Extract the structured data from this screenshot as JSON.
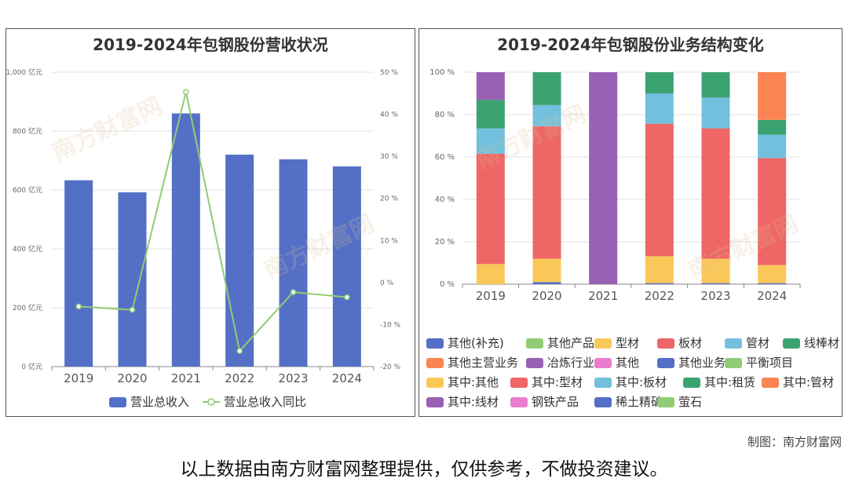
{
  "chart_data": [
    {
      "type": "bar",
      "title": "2019-2024年包钢股份营收状况",
      "categories": [
        "2019",
        "2020",
        "2021",
        "2022",
        "2023",
        "2024"
      ],
      "series": [
        {
          "name": "营业总收入",
          "type": "bar",
          "axis": "left",
          "values": [
            633,
            592,
            860,
            720,
            704,
            680
          ]
        },
        {
          "name": "营业总收入同比",
          "type": "line",
          "axis": "right",
          "values": [
            -5.7,
            -6.5,
            45.3,
            -16.3,
            -2.3,
            -3.5
          ]
        }
      ],
      "y_left": {
        "ylim": [
          0,
          1000
        ],
        "ticks": [
          "0 亿元",
          "200 亿元",
          "400 亿元",
          "600 亿元",
          "800 亿元",
          "1,000 亿元"
        ]
      },
      "y_right": {
        "ylim": [
          -20,
          50
        ],
        "ticks": [
          "-20 %",
          "-10 %",
          "0 %",
          "10 %",
          "20 %",
          "30 %",
          "40 %",
          "50 %"
        ]
      },
      "legend": [
        "营业总收入",
        "营业总收入同比"
      ],
      "colors": {
        "bar": "#5470c6",
        "line": "#91cc75"
      }
    },
    {
      "type": "bar",
      "stacked": true,
      "title": "2019-2024年包钢股份业务结构变化",
      "categories": [
        "2019",
        "2020",
        "2021",
        "2022",
        "2023",
        "2024"
      ],
      "ylim": [
        0,
        100
      ],
      "y_ticks": [
        "0 %",
        "20 %",
        "40 %",
        "60 %",
        "80 %",
        "100 %"
      ],
      "series": [
        {
          "name": "其他(补充)",
          "color": "#5470c6",
          "values": [
            0,
            1,
            0,
            0.5,
            0.5,
            0.5
          ]
        },
        {
          "name": "其他产品",
          "color": "#91cc75",
          "values": [
            0,
            0,
            0,
            0,
            0,
            0
          ]
        },
        {
          "name": "型材",
          "color": "#fac858",
          "values": [
            9.5,
            11,
            0,
            12.7,
            11.5,
            8.5
          ]
        },
        {
          "name": "板材",
          "color": "#ee6666",
          "values": [
            52,
            62.5,
            0,
            62.5,
            61.5,
            50.5
          ]
        },
        {
          "name": "管材",
          "color": "#73c0de",
          "values": [
            12,
            10,
            0,
            14.3,
            14.5,
            11
          ]
        },
        {
          "name": "线棒材",
          "color": "#3ba272",
          "values": [
            13.5,
            15.5,
            0,
            10,
            12,
            7
          ]
        },
        {
          "name": "其他主营业务",
          "color": "#fc8452",
          "values": [
            0,
            0,
            0,
            0,
            0,
            22.5
          ]
        },
        {
          "name": "冶炼行业",
          "color": "#9a60b4",
          "values": [
            13,
            0,
            100,
            0,
            0,
            0
          ]
        },
        {
          "name": "其他",
          "color": "#ea7ccc",
          "values": [
            0,
            0,
            0,
            0,
            0,
            0
          ]
        },
        {
          "name": "其他业务",
          "color": "#5470c6",
          "values": [
            0,
            0,
            0,
            0,
            0,
            0
          ]
        },
        {
          "name": "平衡项目",
          "color": "#91cc75",
          "values": [
            0,
            0,
            0,
            0,
            0,
            0
          ]
        },
        {
          "name": "其中:其他",
          "color": "#fac858",
          "values": [
            0,
            0,
            0,
            0,
            0,
            0
          ]
        },
        {
          "name": "其中:型材",
          "color": "#ee6666",
          "values": [
            0,
            0,
            0,
            0,
            0,
            0
          ]
        },
        {
          "name": "其中:板材",
          "color": "#73c0de",
          "values": [
            0,
            0,
            0,
            0,
            0,
            0
          ]
        },
        {
          "name": "其中:租赁",
          "color": "#3ba272",
          "values": [
            0,
            0,
            0,
            0,
            0,
            0
          ]
        },
        {
          "name": "其中:管材",
          "color": "#fc8452",
          "values": [
            0,
            0,
            0,
            0,
            0,
            0
          ]
        },
        {
          "name": "其中:线材",
          "color": "#9a60b4",
          "values": [
            0,
            0,
            0,
            0,
            0,
            0
          ]
        },
        {
          "name": "钢铁产品",
          "color": "#ea7ccc",
          "values": [
            0,
            0,
            0,
            0,
            0,
            0
          ]
        },
        {
          "name": "稀土精矿",
          "color": "#5470c6",
          "values": [
            0,
            0,
            0,
            0,
            0,
            0
          ]
        },
        {
          "name": "萤石",
          "color": "#91cc75",
          "values": [
            0,
            0,
            0,
            0,
            0,
            0
          ]
        }
      ]
    }
  ],
  "footer": {
    "credit": "制图：南方财富网",
    "disclaimer": "以上数据由南方财富网整理提供，仅供参考，不做投资建议。"
  },
  "watermark": {
    "cn": "南方财富网",
    "en": "southmoney.com"
  }
}
